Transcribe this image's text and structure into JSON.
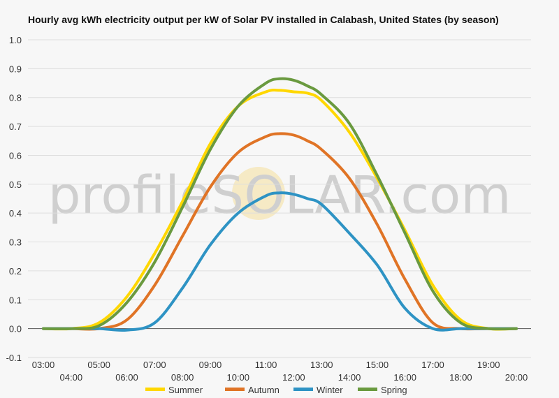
{
  "chart_data": {
    "type": "line",
    "title": "Hourly avg kWh electricity output per kW of Solar PV installed in Calabash, United States (by season)",
    "xlabel": "",
    "ylabel": "",
    "x_ticks_upper": [
      "03:00",
      "05:00",
      "07:00",
      "09:00",
      "11:00",
      "13:00",
      "15:00",
      "17:00",
      "19:00"
    ],
    "x_ticks_lower": [
      "04:00",
      "06:00",
      "08:00",
      "10:00",
      "12:00",
      "14:00",
      "16:00",
      "18:00",
      "20:00"
    ],
    "x": [
      3,
      4,
      5,
      6,
      7,
      8,
      9,
      10,
      11,
      11.5,
      12,
      12.5,
      13,
      14,
      15,
      16,
      17,
      18,
      19,
      20
    ],
    "xlim": [
      3,
      20
    ],
    "ylim": [
      -0.1,
      1.0
    ],
    "y_ticks": [
      "-0.1",
      "0.0",
      "0.1",
      "0.2",
      "0.3",
      "0.4",
      "0.5",
      "0.6",
      "0.7",
      "0.8",
      "0.9",
      "1.0"
    ],
    "grid": "horizontal",
    "legend_position": "bottom",
    "watermark": "profileSOLAR.com",
    "series": [
      {
        "name": "Summer",
        "color": "#ffd700",
        "values": [
          0,
          0,
          0.02,
          0.11,
          0.26,
          0.44,
          0.64,
          0.77,
          0.82,
          0.825,
          0.82,
          0.815,
          0.79,
          0.68,
          0.52,
          0.34,
          0.15,
          0.03,
          0.0,
          0.0
        ]
      },
      {
        "name": "Autumn",
        "color": "#e07426",
        "values": [
          0,
          0,
          0,
          0.03,
          0.15,
          0.32,
          0.49,
          0.61,
          0.665,
          0.675,
          0.67,
          0.65,
          0.62,
          0.52,
          0.36,
          0.17,
          0.02,
          0.0,
          0.0,
          0.0
        ]
      },
      {
        "name": "Winter",
        "color": "#2e93c4",
        "values": [
          0,
          0,
          0,
          -0.005,
          0.02,
          0.14,
          0.29,
          0.4,
          0.46,
          0.47,
          0.465,
          0.45,
          0.43,
          0.33,
          0.22,
          0.07,
          0.0,
          0.0,
          0.0,
          0.0
        ]
      },
      {
        "name": "Spring",
        "color": "#6a9a3f",
        "values": [
          0,
          0,
          0.01,
          0.09,
          0.23,
          0.42,
          0.62,
          0.77,
          0.85,
          0.865,
          0.86,
          0.84,
          0.81,
          0.71,
          0.53,
          0.33,
          0.13,
          0.02,
          0.0,
          0.0
        ]
      }
    ]
  }
}
